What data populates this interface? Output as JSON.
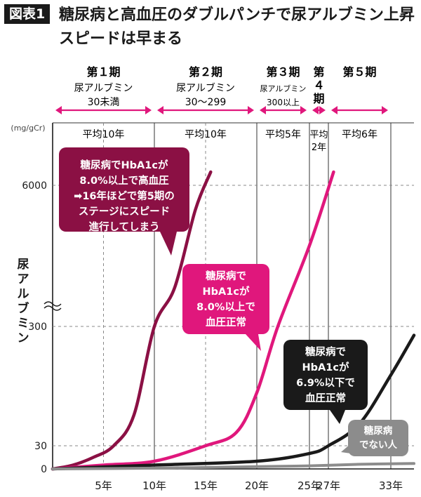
{
  "figure_label": "図表1",
  "title": "糖尿病と高血圧のダブルパンチで尿アルブミン上昇スピードは早まる",
  "y_unit": "(mg/gCr)",
  "y_axis_label": "尿アルブミン",
  "stages": [
    {
      "name": "第１期",
      "sub": "尿アルブミン",
      "range": "30未満",
      "avg": "平均10年"
    },
    {
      "name": "第２期",
      "sub": "尿アルブミン",
      "range": "30～299",
      "avg": "平均10年"
    },
    {
      "name": "第３期",
      "sub": "尿アルブミン",
      "range": "300以上",
      "avg": "平均5年"
    },
    {
      "name": "第４期",
      "sub": "",
      "range": "",
      "avg": "平均2年"
    },
    {
      "name": "第５期",
      "sub": "",
      "range": "",
      "avg": "平均6年"
    }
  ],
  "annotations": [
    {
      "lines": [
        "糖尿病でHbA1cが",
        "8.0%以上で高血圧",
        "➡16年ほどで第5期の",
        "ステージにスピード",
        "進行してしまう"
      ],
      "color": "#8b1044"
    },
    {
      "lines": [
        "糖尿病で",
        "HbA1cが",
        "8.0%以上で",
        "血圧正常"
      ],
      "color": "#e0177c"
    },
    {
      "lines": [
        "糖尿病で",
        "HbA1cが",
        "6.9%以下で",
        "血圧正常"
      ],
      "color": "#1a1a1a"
    },
    {
      "lines": [
        "糖尿病",
        "でない人"
      ],
      "color": "#8c8c8c"
    }
  ],
  "chart_data": {
    "type": "line",
    "title": "糖尿病と高血圧のダブルパンチで尿アルブミン上昇スピードは早まる",
    "xlabel": "",
    "ylabel": "尿アルブミン (mg/gCr)",
    "x_ticks": [
      "5年",
      "10年",
      "15年",
      "20年",
      "25年",
      "27年",
      "33年"
    ],
    "x_tick_values": [
      5,
      10,
      15,
      20,
      25,
      27,
      33
    ],
    "y_ticks": [
      "0",
      "30",
      "300",
      "6000"
    ],
    "y_tick_values": [
      0,
      30,
      300,
      6000
    ],
    "y_scale": "broken (non-linear, axis break between 300 and 6000)",
    "xlim": [
      0,
      34
    ],
    "stage_boundaries_years": [
      10,
      20,
      25,
      27,
      33
    ],
    "grid": true,
    "series": [
      {
        "name": "糖尿病でHbA1cが8.0%以上で高血圧",
        "color": "#8b1044",
        "x": [
          0,
          2,
          4,
          6,
          8,
          10,
          12,
          14,
          15.5
        ],
        "y": [
          0,
          5,
          15,
          30,
          100,
          300,
          1200,
          4200,
          6500
        ]
      },
      {
        "name": "糖尿病でHbA1cが8.0%以上で血圧正常",
        "color": "#e0177c",
        "x": [
          0,
          5,
          10,
          15,
          18,
          20,
          22,
          25,
          27.5
        ],
        "y": [
          0,
          5,
          10,
          30,
          60,
          150,
          300,
          2500,
          6500
        ]
      },
      {
        "name": "糖尿病でHbA1cが6.9%以下で血圧正常",
        "color": "#1a1a1a",
        "x": [
          0,
          10,
          20,
          25,
          27,
          30,
          33,
          34
        ],
        "y": [
          0,
          5,
          10,
          20,
          30,
          80,
          190,
          280
        ]
      },
      {
        "name": "糖尿病でない人",
        "color": "#8c8c8c",
        "x": [
          0,
          10,
          20,
          25,
          30,
          34
        ],
        "y": [
          0,
          1,
          3,
          4,
          6,
          7
        ]
      }
    ]
  }
}
